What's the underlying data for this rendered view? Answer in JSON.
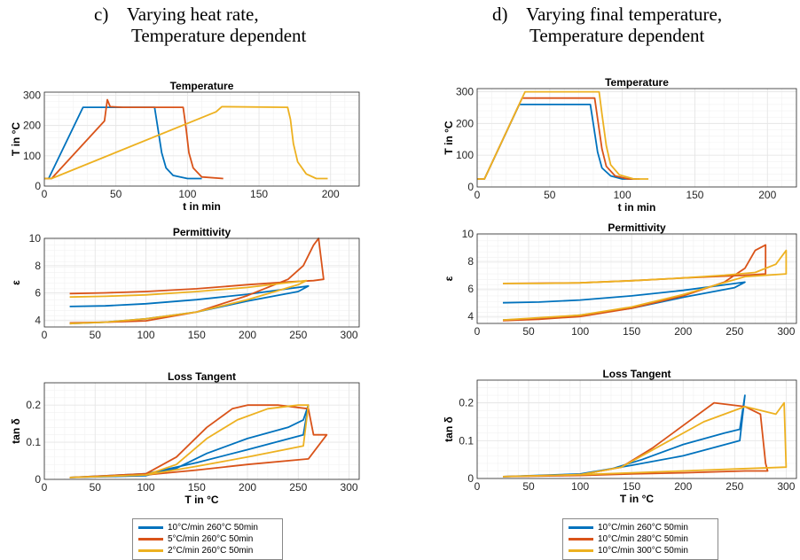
{
  "colors": {
    "blue": "#0072BD",
    "orange": "#D95319",
    "yellow": "#EDB120",
    "grid": "#e6e6e6",
    "axis": "#262626"
  },
  "panels": {
    "c": {
      "line1": "c)    Varying heat rate,",
      "line2": "Temperature dependent"
    },
    "d": {
      "line1": "d)    Varying final temperature,",
      "line2": "Temperature dependent"
    }
  },
  "legends": {
    "c": [
      "10°C/min 260°C 50min",
      "5°C/min 260°C 50min",
      "2°C/min 260°C 50min"
    ],
    "d": [
      "10°C/min 260°C 50min",
      "10°C/min 280°C 50min",
      "10°C/min 300°C 50min"
    ]
  },
  "chart_data": [
    {
      "id": "c-temperature",
      "type": "line",
      "title": "Temperature",
      "xlabel": "t in min",
      "ylabel": "T in °C",
      "xlim": [
        0,
        220
      ],
      "ylim": [
        0,
        310
      ],
      "xticks": [
        0,
        50,
        100,
        150,
        200
      ],
      "yticks": [
        0,
        100,
        200,
        300
      ],
      "grid": true,
      "series": [
        {
          "name": "10°C/min 260°C 50min",
          "color": "blue",
          "x": [
            0,
            3,
            27,
            77,
            79,
            82,
            85,
            90,
            100,
            110
          ],
          "y": [
            25,
            25,
            260,
            260,
            200,
            110,
            60,
            35,
            25,
            25
          ]
        },
        {
          "name": "5°C/min 260°C 50min",
          "color": "orange",
          "x": [
            0,
            5,
            42,
            44,
            46,
            55,
            97,
            99,
            101,
            104,
            110,
            125
          ],
          "y": [
            25,
            25,
            215,
            285,
            262,
            260,
            260,
            190,
            110,
            60,
            30,
            25
          ]
        },
        {
          "name": "2°C/min 260°C 50min",
          "color": "yellow",
          "x": [
            0,
            5,
            120,
            124,
            170,
            172,
            174,
            177,
            183,
            190,
            198
          ],
          "y": [
            25,
            25,
            245,
            262,
            260,
            220,
            140,
            80,
            40,
            25,
            25
          ]
        }
      ]
    },
    {
      "id": "c-permittivity",
      "type": "line",
      "title": "Permittivity",
      "xlabel": "",
      "ylabel": "ε",
      "xlim": [
        0,
        310
      ],
      "ylim": [
        3.5,
        10
      ],
      "xticks": [
        0,
        50,
        100,
        150,
        200,
        250,
        300
      ],
      "yticks": [
        4,
        6,
        8,
        10
      ],
      "grid": true,
      "series": [
        {
          "name": "10°C/min 260°C 50min",
          "color": "blue",
          "x": [
            25,
            60,
            100,
            150,
            200,
            240,
            260,
            250,
            200,
            150,
            100,
            60,
            25
          ],
          "y": [
            5.0,
            5.05,
            5.2,
            5.5,
            5.9,
            6.3,
            6.5,
            6.1,
            5.4,
            4.6,
            4.1,
            3.85,
            3.75
          ]
        },
        {
          "name": "5°C/min 260°C 50min",
          "color": "orange",
          "x": [
            25,
            60,
            100,
            150,
            200,
            240,
            255,
            265,
            270,
            275,
            265,
            240,
            200,
            150,
            100,
            60,
            25
          ],
          "y": [
            3.8,
            3.85,
            3.95,
            4.6,
            5.8,
            7.0,
            8.0,
            9.5,
            10.0,
            7.0,
            6.9,
            6.8,
            6.6,
            6.3,
            6.1,
            6.0,
            5.95
          ]
        },
        {
          "name": "2°C/min 260°C 50min",
          "color": "yellow",
          "x": [
            25,
            60,
            100,
            150,
            200,
            240,
            258,
            250,
            200,
            150,
            100,
            60,
            25
          ],
          "y": [
            5.7,
            5.75,
            5.85,
            6.1,
            6.4,
            6.75,
            6.9,
            6.6,
            5.5,
            4.6,
            4.1,
            3.85,
            3.75
          ]
        }
      ]
    },
    {
      "id": "c-losstangent",
      "type": "line",
      "title": "Loss Tangent",
      "xlabel": "T in °C",
      "ylabel": "tan δ",
      "xlim": [
        0,
        310
      ],
      "ylim": [
        0,
        0.26
      ],
      "xticks": [
        0,
        50,
        100,
        150,
        200,
        250,
        300
      ],
      "yticks": [
        0,
        0.1,
        0.2
      ],
      "grid": true,
      "series": [
        {
          "name": "10°C/min 260°C 50min",
          "color": "blue",
          "x": [
            25,
            100,
            130,
            160,
            200,
            240,
            255,
            260,
            255,
            200,
            150,
            100,
            25
          ],
          "y": [
            0.005,
            0.01,
            0.03,
            0.07,
            0.11,
            0.14,
            0.16,
            0.2,
            0.12,
            0.08,
            0.045,
            0.015,
            0.005
          ]
        },
        {
          "name": "5°C/min 260°C 50min",
          "color": "orange",
          "x": [
            25,
            100,
            130,
            160,
            185,
            200,
            230,
            260,
            265,
            278,
            260,
            200,
            150,
            100,
            25
          ],
          "y": [
            0.005,
            0.015,
            0.06,
            0.14,
            0.19,
            0.2,
            0.2,
            0.19,
            0.12,
            0.12,
            0.055,
            0.04,
            0.025,
            0.012,
            0.005
          ]
        },
        {
          "name": "2°C/min 260°C 50min",
          "color": "yellow",
          "x": [
            25,
            100,
            130,
            160,
            190,
            220,
            250,
            260,
            255,
            200,
            150,
            100,
            25
          ],
          "y": [
            0.005,
            0.012,
            0.04,
            0.11,
            0.16,
            0.19,
            0.2,
            0.2,
            0.09,
            0.06,
            0.035,
            0.012,
            0.005
          ]
        }
      ]
    },
    {
      "id": "d-temperature",
      "type": "line",
      "title": "Temperature",
      "xlabel": "t in min",
      "ylabel": "T in °C",
      "xlim": [
        0,
        220
      ],
      "ylim": [
        0,
        310
      ],
      "xticks": [
        0,
        50,
        100,
        150,
        200
      ],
      "yticks": [
        0,
        100,
        200,
        300
      ],
      "grid": true,
      "series": [
        {
          "name": "10°C/min 260°C 50min",
          "color": "blue",
          "x": [
            0,
            5,
            29,
            78,
            80,
            83,
            86,
            92,
            100,
            110
          ],
          "y": [
            25,
            25,
            260,
            260,
            200,
            110,
            60,
            35,
            25,
            25
          ]
        },
        {
          "name": "10°C/min 280°C 50min",
          "color": "orange",
          "x": [
            0,
            5,
            31,
            81,
            83,
            86,
            89,
            95,
            104,
            112
          ],
          "y": [
            25,
            25,
            280,
            280,
            215,
            120,
            65,
            35,
            25,
            25
          ]
        },
        {
          "name": "10°C/min 300°C 50min",
          "color": "yellow",
          "x": [
            0,
            5,
            33,
            84,
            86,
            89,
            92,
            98,
            108,
            118
          ],
          "y": [
            25,
            25,
            300,
            300,
            230,
            130,
            70,
            38,
            25,
            25
          ]
        }
      ]
    },
    {
      "id": "d-permittivity",
      "type": "line",
      "title": "Permittivity",
      "xlabel": "",
      "ylabel": "ε",
      "xlim": [
        0,
        310
      ],
      "ylim": [
        3.5,
        10
      ],
      "xticks": [
        0,
        50,
        100,
        150,
        200,
        250,
        300
      ],
      "yticks": [
        4,
        6,
        8,
        10
      ],
      "grid": true,
      "series": [
        {
          "name": "10°C/min 260°C 50min",
          "color": "blue",
          "x": [
            25,
            60,
            100,
            150,
            200,
            240,
            260,
            250,
            200,
            150,
            100,
            60,
            25
          ],
          "y": [
            5.0,
            5.05,
            5.2,
            5.5,
            5.9,
            6.3,
            6.5,
            6.1,
            5.4,
            4.6,
            4.1,
            3.85,
            3.75
          ]
        },
        {
          "name": "10°C/min 280°C 50min",
          "color": "orange",
          "x": [
            25,
            60,
            100,
            150,
            200,
            240,
            260,
            270,
            280,
            280,
            260,
            200,
            150,
            100,
            25
          ],
          "y": [
            3.7,
            3.8,
            4.0,
            4.6,
            5.5,
            6.5,
            7.5,
            8.8,
            9.2,
            7.1,
            7.0,
            6.8,
            6.6,
            6.45,
            6.4
          ]
        },
        {
          "name": "10°C/min 300°C 50min",
          "color": "yellow",
          "x": [
            25,
            60,
            100,
            150,
            200,
            240,
            270,
            290,
            300,
            300,
            260,
            200,
            150,
            100,
            25
          ],
          "y": [
            6.4,
            6.4,
            6.45,
            6.6,
            6.8,
            7.0,
            7.2,
            7.8,
            8.8,
            7.1,
            6.9,
            5.6,
            4.7,
            4.1,
            3.75
          ]
        }
      ]
    },
    {
      "id": "d-losstangent",
      "type": "line",
      "title": "Loss Tangent",
      "xlabel": "T in °C",
      "ylabel": "tan δ",
      "xlim": [
        0,
        310
      ],
      "ylim": [
        0,
        0.26
      ],
      "xticks": [
        0,
        50,
        100,
        150,
        200,
        250,
        300
      ],
      "yticks": [
        0,
        0.1,
        0.2
      ],
      "grid": true,
      "series": [
        {
          "name": "10°C/min 260°C 50min",
          "color": "blue",
          "x": [
            25,
            100,
            130,
            160,
            200,
            240,
            255,
            260,
            255,
            200,
            150,
            100,
            25
          ],
          "y": [
            0.005,
            0.01,
            0.025,
            0.05,
            0.09,
            0.12,
            0.13,
            0.22,
            0.1,
            0.06,
            0.035,
            0.012,
            0.005
          ]
        },
        {
          "name": "10°C/min 280°C 50min",
          "color": "orange",
          "x": [
            25,
            100,
            140,
            170,
            200,
            230,
            260,
            275,
            280,
            282,
            260,
            200,
            150,
            100,
            25
          ],
          "y": [
            0.005,
            0.01,
            0.03,
            0.08,
            0.14,
            0.2,
            0.19,
            0.17,
            0.04,
            0.02,
            0.02,
            0.015,
            0.012,
            0.008,
            0.005
          ]
        },
        {
          "name": "10°C/min 300°C 50min",
          "color": "yellow",
          "x": [
            25,
            100,
            140,
            180,
            220,
            260,
            290,
            298,
            300,
            300,
            250,
            200,
            150,
            100,
            25
          ],
          "y": [
            0.005,
            0.01,
            0.03,
            0.09,
            0.15,
            0.19,
            0.17,
            0.2,
            0.03,
            0.03,
            0.025,
            0.02,
            0.015,
            0.01,
            0.005
          ]
        }
      ]
    }
  ]
}
